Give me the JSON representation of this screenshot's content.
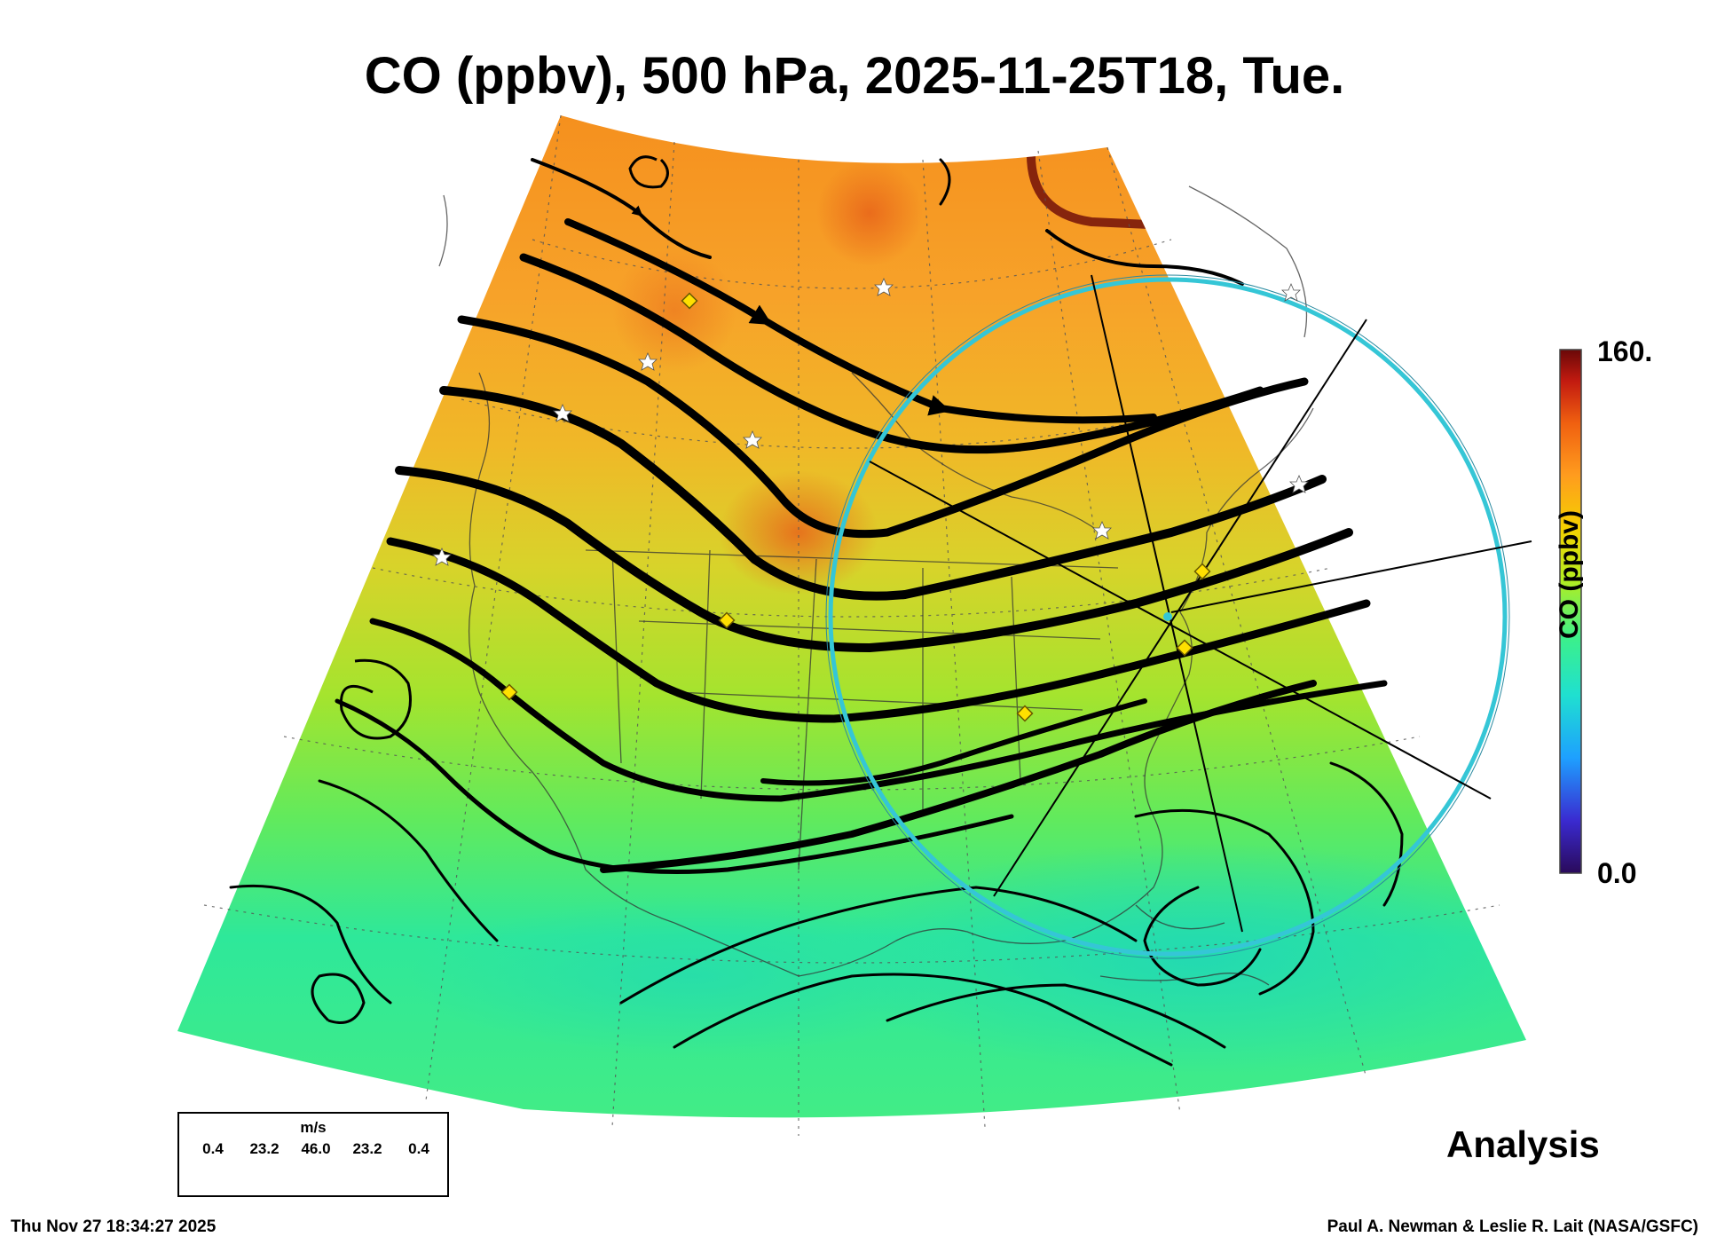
{
  "title": "CO (ppbv), 500 hPa, 2025-11-25T18, Tue.",
  "colorbar": {
    "label": "CO (ppbv)",
    "max_label": "160.",
    "min_label": "0.0",
    "min": 0.0,
    "max": 160.0,
    "colormap": [
      "#2a0a5a",
      "#3a2ad0",
      "#1ea0ff",
      "#1fe0d0",
      "#3cf08a",
      "#b4ee20",
      "#f5d000",
      "#ff9c1e",
      "#f06010",
      "#c21a10",
      "#6a0808"
    ]
  },
  "wind_legend": {
    "unit": "m/s",
    "ticks": [
      "0.4",
      "23.2",
      "46.0",
      "23.2",
      "0.4"
    ]
  },
  "analysis_label": "Analysis",
  "footer": {
    "timestamp": "Thu Nov 27 18:34:27 2025",
    "credit": "Paul A. Newman & Leslie R. Lait (NASA/GSFC)"
  },
  "colors": {
    "background_air_high": "#f59a2a",
    "background_air_mid": "#c8e22a",
    "background_air_low": "#3ee88c",
    "streamline": "#000000",
    "circle": "#35c6d6",
    "site_marker": "#ffe000"
  },
  "icons": [
    "yellow-diamond-site-marker",
    "white-star-site-marker",
    "cyan-circle-region"
  ]
}
